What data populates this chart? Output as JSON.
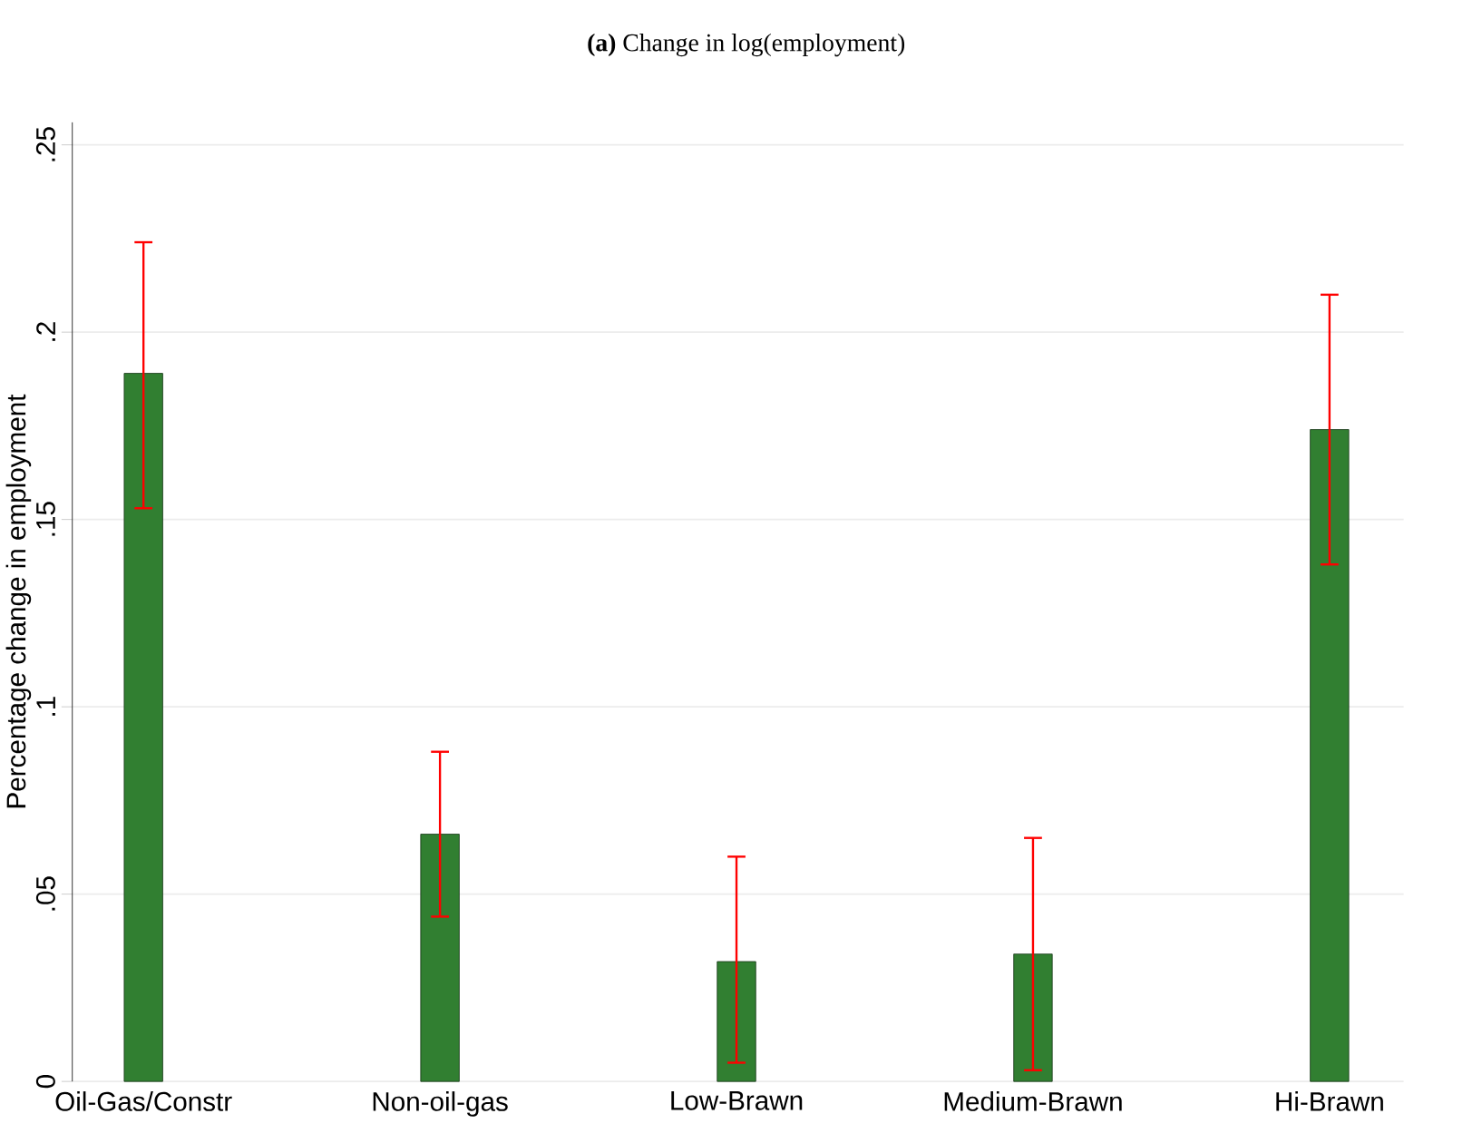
{
  "chart_data": {
    "type": "bar",
    "title": "**(a)** Change in log(employment)",
    "ylabel": "Percentage change in employment",
    "categories": [
      "Oil-Gas/Constr",
      "Non-oil-gas",
      "Low-Brawn",
      "Medium-Brawn",
      "Hi-Brawn"
    ],
    "values": [
      0.189,
      0.066,
      0.032,
      0.034,
      0.174
    ],
    "errors": [
      [
        0.153,
        0.224
      ],
      [
        0.044,
        0.088
      ],
      [
        0.005,
        0.06
      ],
      [
        0.003,
        0.065
      ],
      [
        0.138,
        0.21
      ]
    ],
    "color": "#317f31",
    "ylim": [
      0,
      0.256
    ],
    "yticks": [
      0,
      {
        "value": 0.05,
        "label": ".05"
      },
      {
        "value": 0.1,
        "label": ".1"
      },
      {
        "value": 0.15,
        "label": ".15"
      },
      {
        "value": 0.2,
        "label": ".2"
      },
      {
        "value": 0.25,
        "label": ".25"
      }
    ],
    "grid": "y"
  }
}
